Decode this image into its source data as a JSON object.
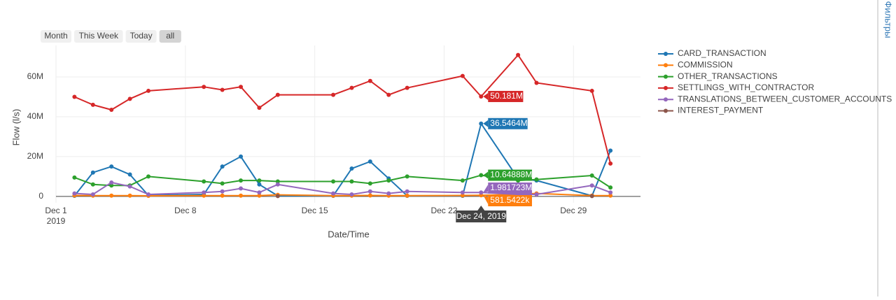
{
  "chart_data": {
    "type": "line",
    "buttons": [
      "Month",
      "This Week",
      "Today",
      "all"
    ],
    "active_button": "all",
    "side_panel": "Фильтры",
    "x_label": "Date/Time",
    "y_label": "Flow (l/s)",
    "x": [
      "2019-12-02",
      "2019-12-03",
      "2019-12-04",
      "2019-12-05",
      "2019-12-06",
      "2019-12-09",
      "2019-12-10",
      "2019-12-11",
      "2019-12-12",
      "2019-12-13",
      "2019-12-16",
      "2019-12-17",
      "2019-12-18",
      "2019-12-19",
      "2019-12-20",
      "2019-12-23",
      "2019-12-24",
      "2019-12-26",
      "2019-12-27",
      "2019-12-30",
      "2019-12-31"
    ],
    "xlim": [
      "2019-12-01T00:00:00Z",
      "2020-01-01T15:00:00Z"
    ],
    "xticks": [
      {
        "value": "2019-12-01",
        "label": "Dec 1"
      },
      {
        "value": "2019-12-08",
        "label": "Dec 8"
      },
      {
        "value": "2019-12-15",
        "label": "Dec 15"
      },
      {
        "value": "2019-12-22",
        "label": "Dec 22"
      },
      {
        "value": "2019-12-29",
        "label": "Dec 29"
      }
    ],
    "xtick_year": "2019",
    "ylim": [
      -3200000,
      75800000
    ],
    "yticks": [
      0,
      {
        "value": 20000000,
        "label": "20M"
      },
      {
        "value": 40000000,
        "label": "40M"
      },
      {
        "value": 60000000,
        "label": "60M"
      }
    ],
    "grid": true,
    "hover_date": "Dec 24, 2019",
    "series": [
      {
        "name": "CARD_TRANSACTION",
        "color": "#1f77b4",
        "values": [
          300000,
          12000000,
          15000000,
          11000000,
          500000,
          1000000,
          15000000,
          20000000,
          6000000,
          300000,
          300000,
          14000000,
          17500000,
          9000000,
          300000,
          300000,
          36546400,
          9000000,
          8000000,
          300000,
          23000000
        ],
        "value_labels": [
          null,
          null,
          null,
          null,
          null,
          null,
          null,
          null,
          null,
          null,
          null,
          null,
          null,
          null,
          null,
          null,
          "36.5464M",
          null,
          null,
          null,
          null
        ]
      },
      {
        "name": "COMMISSION",
        "color": "#ff7f0e",
        "values": [
          500000,
          400000,
          400000,
          400000,
          300000,
          400000,
          400000,
          400000,
          400000,
          800000,
          400000,
          400000,
          500000,
          400000,
          400000,
          500000,
          581542.2,
          1000000,
          1500000,
          400000,
          400000
        ],
        "value_labels": [
          null,
          null,
          null,
          null,
          null,
          null,
          null,
          null,
          null,
          null,
          null,
          null,
          null,
          null,
          null,
          null,
          "581.5422k",
          null,
          null,
          null,
          null
        ]
      },
      {
        "name": "OTHER_TRANSACTIONS",
        "color": "#2ca02c",
        "values": [
          9500000,
          6000000,
          5500000,
          5500000,
          10000000,
          7500000,
          6500000,
          8000000,
          8000000,
          7500000,
          7500000,
          7500000,
          6500000,
          8000000,
          10000000,
          8000000,
          10648880,
          8000000,
          8500000,
          10500000,
          4500000
        ],
        "value_labels": [
          null,
          null,
          null,
          null,
          null,
          null,
          null,
          null,
          null,
          null,
          null,
          null,
          null,
          null,
          null,
          null,
          "10.64888M",
          null,
          null,
          null,
          null
        ]
      },
      {
        "name": "SETTLINGS_WITH_CONTRACTOR",
        "color": "#d62728",
        "values": [
          50000000,
          46000000,
          43500000,
          49000000,
          53000000,
          55000000,
          53500000,
          55000000,
          44500000,
          51000000,
          51000000,
          54500000,
          58000000,
          51000000,
          54500000,
          60500000,
          50181000,
          71000000,
          57000000,
          53000000,
          16500000
        ],
        "value_labels": [
          null,
          null,
          null,
          null,
          null,
          null,
          null,
          null,
          null,
          null,
          null,
          null,
          null,
          null,
          null,
          null,
          "50.181M",
          null,
          null,
          null,
          null
        ]
      },
      {
        "name": "TRANSLATIONS_BETWEEN_CUSTOMER_ACCOUNTS",
        "color": "#9467bd",
        "values": [
          1500000,
          1000000,
          7000000,
          5000000,
          1000000,
          2000000,
          2500000,
          4000000,
          2000000,
          6000000,
          1500000,
          1000000,
          2500000,
          1500000,
          2500000,
          2000000,
          1981723,
          1000000,
          1000000,
          5500000,
          2000000
        ],
        "value_labels": [
          null,
          null,
          null,
          null,
          null,
          null,
          null,
          null,
          null,
          null,
          null,
          null,
          null,
          null,
          null,
          null,
          "1.981723M",
          null,
          null,
          null,
          null
        ]
      },
      {
        "name": "INTEREST_PAYMENT",
        "color": "#8c564b",
        "values": [
          null,
          null,
          null,
          null,
          null,
          null,
          null,
          null,
          null,
          200000,
          null,
          null,
          null,
          null,
          null,
          null,
          null,
          null,
          null,
          200000,
          null
        ]
      }
    ]
  }
}
